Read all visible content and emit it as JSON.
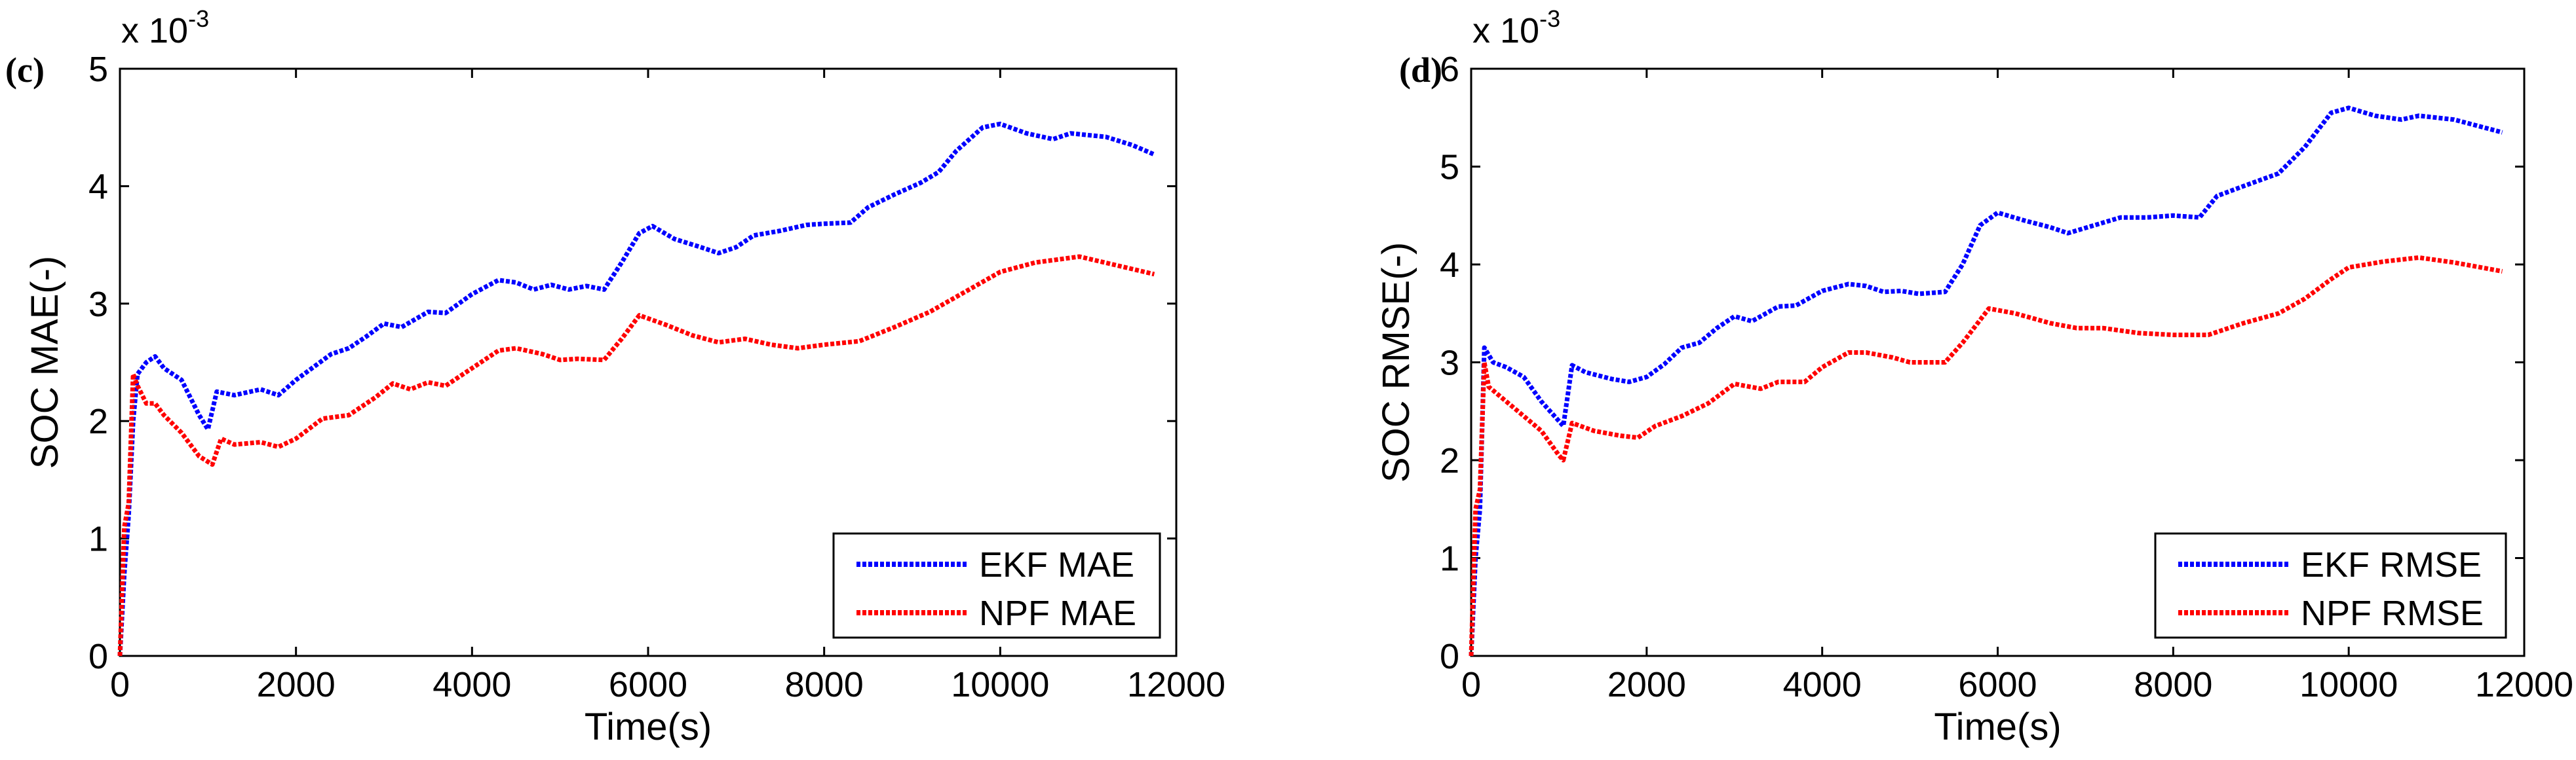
{
  "chart_data": [
    {
      "type": "line",
      "panel_label": "(c)",
      "xlabel": "Time(s)",
      "ylabel": "SOC MAE(-)",
      "scale_base": "x 10",
      "scale_exp": "-3",
      "xlim": [
        0,
        12000
      ],
      "ylim": [
        0,
        5
      ],
      "xticks": [
        "0",
        "2000",
        "4000",
        "6000",
        "8000",
        "10000",
        "12000"
      ],
      "yticks": [
        "0",
        "1",
        "2",
        "3",
        "4",
        "5"
      ],
      "legend_position": "bottom-right",
      "series": [
        {
          "name": "EKF MAE",
          "color": "#0000ff",
          "x": [
            0,
            50,
            100,
            150,
            200,
            300,
            400,
            500,
            700,
            900,
            1000,
            1100,
            1300,
            1600,
            1800,
            2000,
            2400,
            2600,
            2800,
            3000,
            3200,
            3500,
            3700,
            4000,
            4300,
            4500,
            4700,
            4900,
            5100,
            5300,
            5500,
            5700,
            5900,
            6050,
            6300,
            6600,
            6800,
            7000,
            7200,
            7500,
            7800,
            8000,
            8300,
            8500,
            8800,
            9100,
            9300,
            9500,
            9800,
            10000,
            10300,
            10600,
            10800,
            11200,
            11500,
            11750
          ],
          "y": [
            0,
            0.7,
            1.2,
            2.0,
            2.4,
            2.5,
            2.55,
            2.45,
            2.35,
            2.05,
            1.93,
            2.25,
            2.22,
            2.27,
            2.22,
            2.35,
            2.57,
            2.62,
            2.72,
            2.83,
            2.8,
            2.93,
            2.92,
            3.08,
            3.2,
            3.18,
            3.12,
            3.16,
            3.12,
            3.15,
            3.12,
            3.35,
            3.6,
            3.66,
            3.55,
            3.48,
            3.43,
            3.48,
            3.58,
            3.62,
            3.67,
            3.68,
            3.69,
            3.82,
            3.93,
            4.03,
            4.12,
            4.3,
            4.5,
            4.53,
            4.45,
            4.4,
            4.45,
            4.42,
            4.35,
            4.27
          ]
        },
        {
          "name": "NPF MAE",
          "color": "#ff0000",
          "x": [
            0,
            50,
            100,
            150,
            200,
            300,
            400,
            500,
            700,
            900,
            1050,
            1150,
            1300,
            1600,
            1800,
            2000,
            2300,
            2600,
            2900,
            3100,
            3300,
            3500,
            3700,
            4000,
            4300,
            4500,
            4800,
            5000,
            5200,
            5500,
            5700,
            5900,
            6200,
            6500,
            6800,
            7100,
            7400,
            7700,
            8000,
            8400,
            8800,
            9200,
            9600,
            10000,
            10400,
            10900,
            11300,
            11750
          ],
          "y": [
            0,
            1.1,
            1.3,
            2.4,
            2.3,
            2.15,
            2.15,
            2.05,
            1.9,
            1.7,
            1.63,
            1.85,
            1.8,
            1.82,
            1.78,
            1.85,
            2.02,
            2.05,
            2.2,
            2.32,
            2.27,
            2.33,
            2.3,
            2.45,
            2.6,
            2.62,
            2.57,
            2.52,
            2.53,
            2.52,
            2.7,
            2.9,
            2.82,
            2.73,
            2.67,
            2.7,
            2.65,
            2.62,
            2.65,
            2.68,
            2.8,
            2.93,
            3.1,
            3.27,
            3.35,
            3.4,
            3.33,
            3.25
          ]
        }
      ]
    },
    {
      "type": "line",
      "panel_label": "(d)",
      "xlabel": "Time(s)",
      "ylabel": "SOC RMSE(-)",
      "scale_base": "x 10",
      "scale_exp": "-3",
      "xlim": [
        0,
        12000
      ],
      "ylim": [
        0,
        6
      ],
      "xticks": [
        "0",
        "2000",
        "4000",
        "6000",
        "8000",
        "10000",
        "12000"
      ],
      "yticks": [
        "0",
        "1",
        "2",
        "3",
        "4",
        "5",
        "6"
      ],
      "legend_position": "bottom-right",
      "series": [
        {
          "name": "EKF RMSE",
          "color": "#0000ff",
          "x": [
            0,
            50,
            100,
            150,
            250,
            400,
            600,
            800,
            1000,
            1050,
            1150,
            1300,
            1600,
            1800,
            2000,
            2200,
            2400,
            2600,
            2800,
            3000,
            3200,
            3500,
            3700,
            4000,
            4300,
            4500,
            4700,
            4900,
            5100,
            5400,
            5600,
            5800,
            6000,
            6300,
            6600,
            6800,
            7100,
            7400,
            7700,
            8000,
            8300,
            8500,
            8800,
            9200,
            9500,
            9800,
            10000,
            10300,
            10600,
            10800,
            11200,
            11750
          ],
          "y": [
            0,
            1.0,
            1.5,
            3.15,
            3.0,
            2.95,
            2.85,
            2.6,
            2.4,
            2.35,
            2.97,
            2.9,
            2.83,
            2.8,
            2.85,
            2.98,
            3.15,
            3.2,
            3.35,
            3.47,
            3.42,
            3.57,
            3.58,
            3.73,
            3.8,
            3.78,
            3.72,
            3.73,
            3.7,
            3.72,
            4.0,
            4.4,
            4.53,
            4.45,
            4.38,
            4.32,
            4.4,
            4.48,
            4.48,
            4.5,
            4.48,
            4.7,
            4.8,
            4.93,
            5.2,
            5.55,
            5.6,
            5.52,
            5.48,
            5.52,
            5.48,
            5.35
          ]
        },
        {
          "name": "NPF RMSE",
          "color": "#ff0000",
          "x": [
            0,
            50,
            100,
            150,
            200,
            400,
            600,
            800,
            1000,
            1050,
            1150,
            1400,
            1700,
            1900,
            2100,
            2400,
            2700,
            3000,
            3300,
            3500,
            3800,
            4000,
            4300,
            4500,
            4800,
            5000,
            5400,
            5600,
            5900,
            6200,
            6600,
            6900,
            7200,
            7600,
            8000,
            8400,
            8800,
            9200,
            9500,
            9800,
            10000,
            10400,
            10800,
            11200,
            11750
          ],
          "y": [
            0,
            1.5,
            1.7,
            3.0,
            2.75,
            2.6,
            2.45,
            2.3,
            2.05,
            2.0,
            2.38,
            2.3,
            2.25,
            2.23,
            2.35,
            2.45,
            2.58,
            2.78,
            2.73,
            2.8,
            2.8,
            2.95,
            3.1,
            3.1,
            3.05,
            3.0,
            3.0,
            3.2,
            3.55,
            3.5,
            3.4,
            3.35,
            3.35,
            3.3,
            3.28,
            3.28,
            3.4,
            3.5,
            3.65,
            3.85,
            3.97,
            4.03,
            4.07,
            4.02,
            3.93
          ]
        }
      ]
    }
  ]
}
